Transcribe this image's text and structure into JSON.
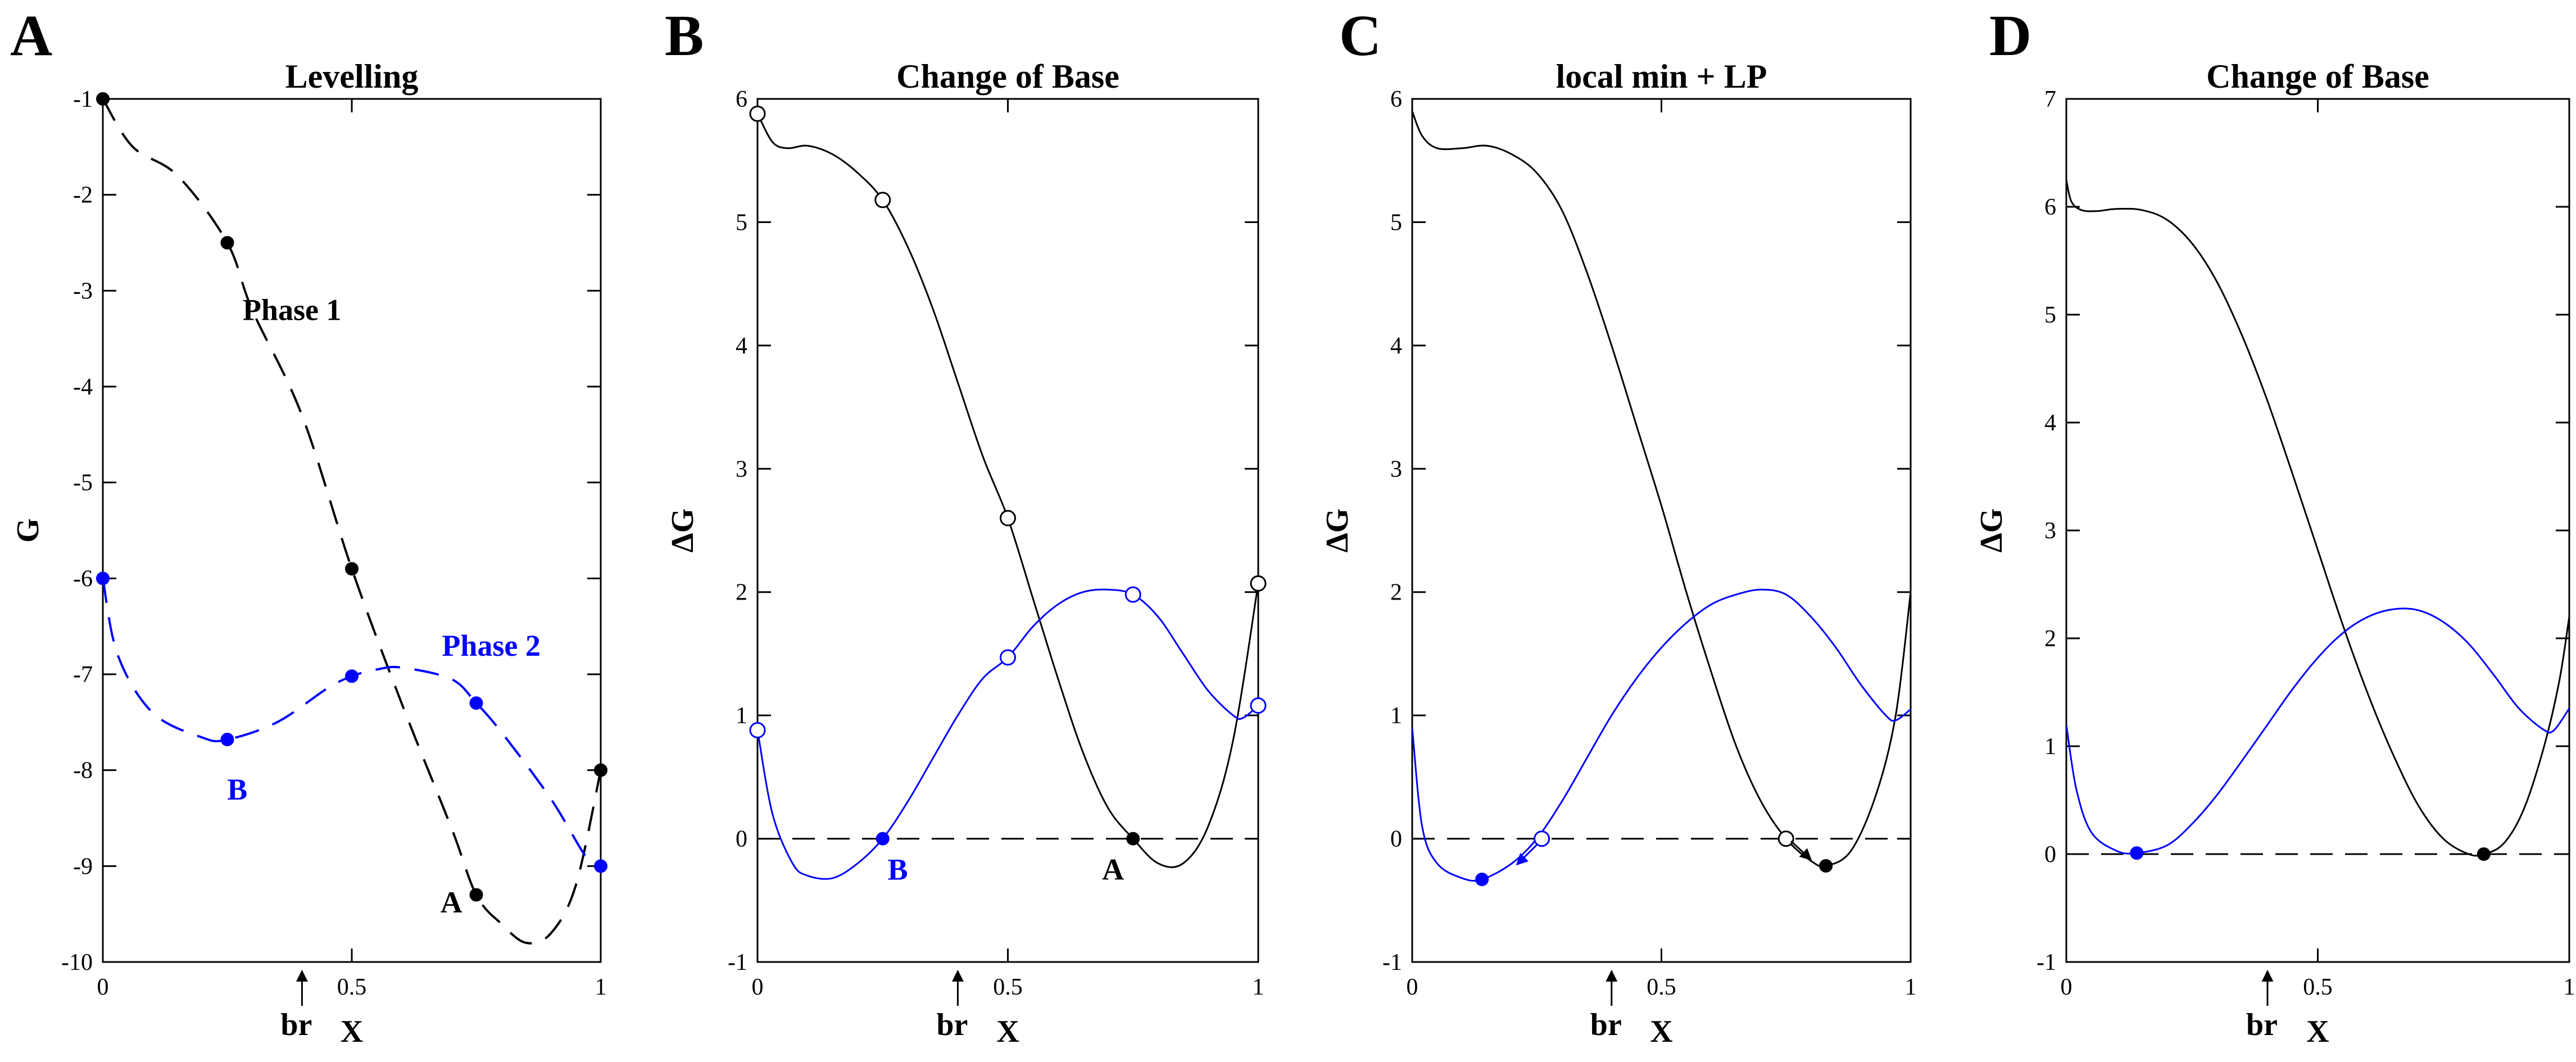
{
  "colors": {
    "black": "#000000",
    "blue": "#0000ff"
  },
  "chart_data": [
    {
      "panel": "A",
      "type": "line",
      "title": "Levelling",
      "xlabel": "X",
      "ylabel": "G",
      "xlim": [
        0,
        1
      ],
      "ylim": [
        -10,
        -1
      ],
      "xticks": [
        0,
        0.5,
        1
      ],
      "xtick_labels": [
        "0",
        "0.5",
        "1"
      ],
      "yticks": [
        -10,
        -9,
        -8,
        -7,
        -6,
        -5,
        -4,
        -3,
        -2,
        -1
      ],
      "ytick_labels": [
        "-10",
        "-9",
        "-8",
        "-7",
        "-6",
        "-5",
        "-4",
        "-3",
        "-2",
        "-1"
      ],
      "marker_arrow": {
        "x": 0.4,
        "label": "br"
      },
      "series": [
        {
          "color": "black",
          "dash": true,
          "curve_x": [
            0,
            0.06,
            0.15,
            0.25,
            0.3,
            0.4,
            0.5,
            0.6,
            0.7,
            0.75,
            0.8,
            0.85,
            0.9,
            0.95,
            1
          ],
          "curve_y": [
            -1,
            -1.5,
            -1.8,
            -2.5,
            -3.2,
            -4.3,
            -5.9,
            -7.3,
            -8.6,
            -9.3,
            -9.6,
            -9.8,
            -9.7,
            -9.2,
            -8.0
          ],
          "points_x": [
            0,
            0.25,
            0.5,
            0.75,
            1
          ],
          "points_y": [
            -1,
            -2.5,
            -5.9,
            -9.3,
            -8.0
          ]
        },
        {
          "color": "blue",
          "dash": true,
          "curve_x": [
            0,
            0.03,
            0.1,
            0.2,
            0.25,
            0.35,
            0.45,
            0.5,
            0.55,
            0.6,
            0.7,
            0.75,
            0.8,
            0.9,
            0.97,
            1
          ],
          "curve_y": [
            -6.0,
            -6.8,
            -7.4,
            -7.66,
            -7.68,
            -7.5,
            -7.15,
            -7.02,
            -6.95,
            -6.93,
            -7.05,
            -7.3,
            -7.6,
            -8.3,
            -8.9,
            -9.0
          ],
          "points_x": [
            0,
            0.25,
            0.5,
            0.75,
            1
          ],
          "points_y": [
            -6.0,
            -7.68,
            -7.02,
            -7.3,
            -9.0
          ]
        }
      ],
      "annotations": [
        {
          "text": "Phase 1",
          "x": 0.38,
          "y": -3.2,
          "color": "black"
        },
        {
          "text": "Phase 2",
          "x": 0.78,
          "y": -6.7,
          "color": "blue"
        },
        {
          "text": "B",
          "x": 0.27,
          "y": -8.2,
          "color": "blue"
        },
        {
          "text": "A",
          "x": 0.7,
          "y": -9.38,
          "color": "black"
        }
      ]
    },
    {
      "panel": "B",
      "type": "line",
      "title": "Change of Base",
      "xlabel": "X",
      "ylabel": "ΔG",
      "xlim": [
        0,
        1
      ],
      "ylim": [
        -1,
        6
      ],
      "xticks": [
        0,
        0.5,
        1
      ],
      "xtick_labels": [
        "0",
        "0.5",
        "1"
      ],
      "yticks": [
        -1,
        0,
        1,
        2,
        3,
        4,
        5,
        6
      ],
      "ytick_labels": [
        "-1",
        "0",
        "1",
        "2",
        "3",
        "4",
        "5",
        "6"
      ],
      "marker_arrow": {
        "x": 0.4,
        "label": "br"
      },
      "reference_line_y": 0,
      "series": [
        {
          "color": "black",
          "curve_x": [
            0,
            0.03,
            0.06,
            0.1,
            0.15,
            0.2,
            0.25,
            0.3,
            0.35,
            0.4,
            0.45,
            0.5,
            0.55,
            0.6,
            0.65,
            0.7,
            0.75,
            0.8,
            0.85,
            0.9,
            0.95,
            1
          ],
          "curve_y": [
            5.88,
            5.65,
            5.6,
            5.62,
            5.55,
            5.4,
            5.18,
            4.8,
            4.3,
            3.7,
            3.1,
            2.6,
            1.95,
            1.3,
            0.7,
            0.25,
            0.0,
            -0.2,
            -0.2,
            0.1,
            0.8,
            2.07
          ],
          "open_x": [
            0,
            0.25,
            0.5,
            1
          ],
          "open_y": [
            5.88,
            5.18,
            2.6,
            2.07
          ],
          "filled_x": [
            0.75
          ],
          "filled_y": [
            0
          ]
        },
        {
          "color": "blue",
          "curve_x": [
            0,
            0.03,
            0.07,
            0.1,
            0.15,
            0.2,
            0.25,
            0.3,
            0.35,
            0.4,
            0.45,
            0.5,
            0.55,
            0.6,
            0.65,
            0.7,
            0.75,
            0.8,
            0.85,
            0.9,
            0.95,
            0.97,
            1
          ],
          "curve_y": [
            0.88,
            0.2,
            -0.2,
            -0.3,
            -0.32,
            -0.2,
            0.0,
            0.3,
            0.65,
            1.0,
            1.3,
            1.47,
            1.72,
            1.9,
            2.0,
            2.02,
            1.98,
            1.8,
            1.5,
            1.2,
            1.0,
            0.98,
            1.08
          ],
          "open_x": [
            0,
            0.5,
            0.75,
            1
          ],
          "open_y": [
            0.88,
            1.47,
            1.98,
            1.08
          ],
          "filled_x": [
            0.25
          ],
          "filled_y": [
            0
          ]
        }
      ],
      "annotations": [
        {
          "text": "B",
          "x": 0.28,
          "y": -0.25,
          "color": "blue"
        },
        {
          "text": "A",
          "x": 0.71,
          "y": -0.25,
          "color": "black"
        }
      ]
    },
    {
      "panel": "C",
      "type": "line",
      "title": "local min + LP",
      "xlabel": "X",
      "ylabel": "ΔG",
      "xlim": [
        0,
        1
      ],
      "ylim": [
        -1,
        6
      ],
      "xticks": [
        0,
        0.5,
        1
      ],
      "xtick_labels": [
        "0",
        "0.5",
        "1"
      ],
      "yticks": [
        -1,
        0,
        1,
        2,
        3,
        4,
        5,
        6
      ],
      "ytick_labels": [
        "-1",
        "0",
        "1",
        "2",
        "3",
        "4",
        "5",
        "6"
      ],
      "marker_arrow": {
        "x": 0.4,
        "label": "br"
      },
      "reference_line_y": 0,
      "series": [
        {
          "color": "black",
          "curve_x": [
            0,
            0.02,
            0.05,
            0.1,
            0.15,
            0.2,
            0.25,
            0.3,
            0.35,
            0.4,
            0.45,
            0.5,
            0.55,
            0.6,
            0.65,
            0.7,
            0.75,
            0.8,
            0.83,
            0.88,
            0.93,
            0.97,
            1
          ],
          "curve_y": [
            5.9,
            5.7,
            5.6,
            5.6,
            5.62,
            5.55,
            5.4,
            5.1,
            4.6,
            4.0,
            3.35,
            2.7,
            2.0,
            1.35,
            0.75,
            0.3,
            0.0,
            -0.18,
            -0.22,
            -0.1,
            0.35,
            1.0,
            2.0
          ],
          "open_x": [
            0.75
          ],
          "open_y": [
            0
          ],
          "filled_x": [
            0.83
          ],
          "filled_y": [
            -0.22
          ]
        },
        {
          "color": "blue",
          "curve_x": [
            0,
            0.02,
            0.05,
            0.1,
            0.14,
            0.2,
            0.25,
            0.3,
            0.35,
            0.4,
            0.45,
            0.5,
            0.55,
            0.6,
            0.65,
            0.7,
            0.75,
            0.8,
            0.85,
            0.9,
            0.95,
            0.97,
            1
          ],
          "curve_y": [
            0.9,
            0.1,
            -0.2,
            -0.32,
            -0.33,
            -0.2,
            0.0,
            0.3,
            0.65,
            1.0,
            1.3,
            1.55,
            1.75,
            1.9,
            1.98,
            2.02,
            1.98,
            1.8,
            1.55,
            1.25,
            1.0,
            0.96,
            1.05
          ],
          "open_x": [
            0.26
          ],
          "open_y": [
            0
          ],
          "filled_x": [
            0.14
          ],
          "filled_y": [
            -0.33
          ]
        }
      ],
      "arrows": [
        {
          "from": [
            0.76,
            -0.02
          ],
          "to": [
            0.8,
            -0.17
          ],
          "color": "black"
        },
        {
          "from": [
            0.25,
            -0.05
          ],
          "to": [
            0.21,
            -0.21
          ],
          "color": "blue"
        }
      ]
    },
    {
      "panel": "D",
      "type": "line",
      "title": "Change of Base",
      "xlabel": "X",
      "ylabel": "ΔG",
      "xlim": [
        0,
        1
      ],
      "ylim": [
        -1,
        7
      ],
      "xticks": [
        0,
        0.5,
        1
      ],
      "xtick_labels": [
        "0",
        "0.5",
        "1"
      ],
      "yticks": [
        -1,
        0,
        1,
        2,
        3,
        4,
        5,
        6,
        7
      ],
      "ytick_labels": [
        "-1",
        "0",
        "1",
        "2",
        "3",
        "4",
        "5",
        "6",
        "7"
      ],
      "marker_arrow": {
        "x": 0.4,
        "label": "br"
      },
      "reference_line_y": 0,
      "series": [
        {
          "color": "black",
          "curve_x": [
            0,
            0.01,
            0.03,
            0.06,
            0.1,
            0.15,
            0.2,
            0.25,
            0.3,
            0.35,
            0.4,
            0.45,
            0.5,
            0.55,
            0.6,
            0.65,
            0.7,
            0.75,
            0.8,
            0.83,
            0.87,
            0.91,
            0.95,
            0.98,
            1
          ],
          "curve_y": [
            6.25,
            6.05,
            5.97,
            5.96,
            5.98,
            5.97,
            5.88,
            5.66,
            5.3,
            4.8,
            4.2,
            3.52,
            2.82,
            2.12,
            1.48,
            0.92,
            0.45,
            0.14,
            0.0,
            0.0,
            0.1,
            0.42,
            1.0,
            1.6,
            2.2
          ],
          "filled_x": [
            0.83
          ],
          "filled_y": [
            0
          ]
        },
        {
          "color": "blue",
          "curve_x": [
            0,
            0.02,
            0.05,
            0.1,
            0.14,
            0.2,
            0.25,
            0.3,
            0.35,
            0.4,
            0.45,
            0.5,
            0.55,
            0.6,
            0.65,
            0.7,
            0.75,
            0.8,
            0.85,
            0.9,
            0.95,
            0.97,
            1
          ],
          "curve_y": [
            1.2,
            0.6,
            0.2,
            0.03,
            0.01,
            0.08,
            0.28,
            0.55,
            0.87,
            1.2,
            1.53,
            1.82,
            2.05,
            2.2,
            2.27,
            2.26,
            2.15,
            1.95,
            1.66,
            1.35,
            1.15,
            1.15,
            1.35
          ],
          "filled_x": [
            0.14
          ],
          "filled_y": [
            0.01
          ]
        }
      ]
    }
  ]
}
